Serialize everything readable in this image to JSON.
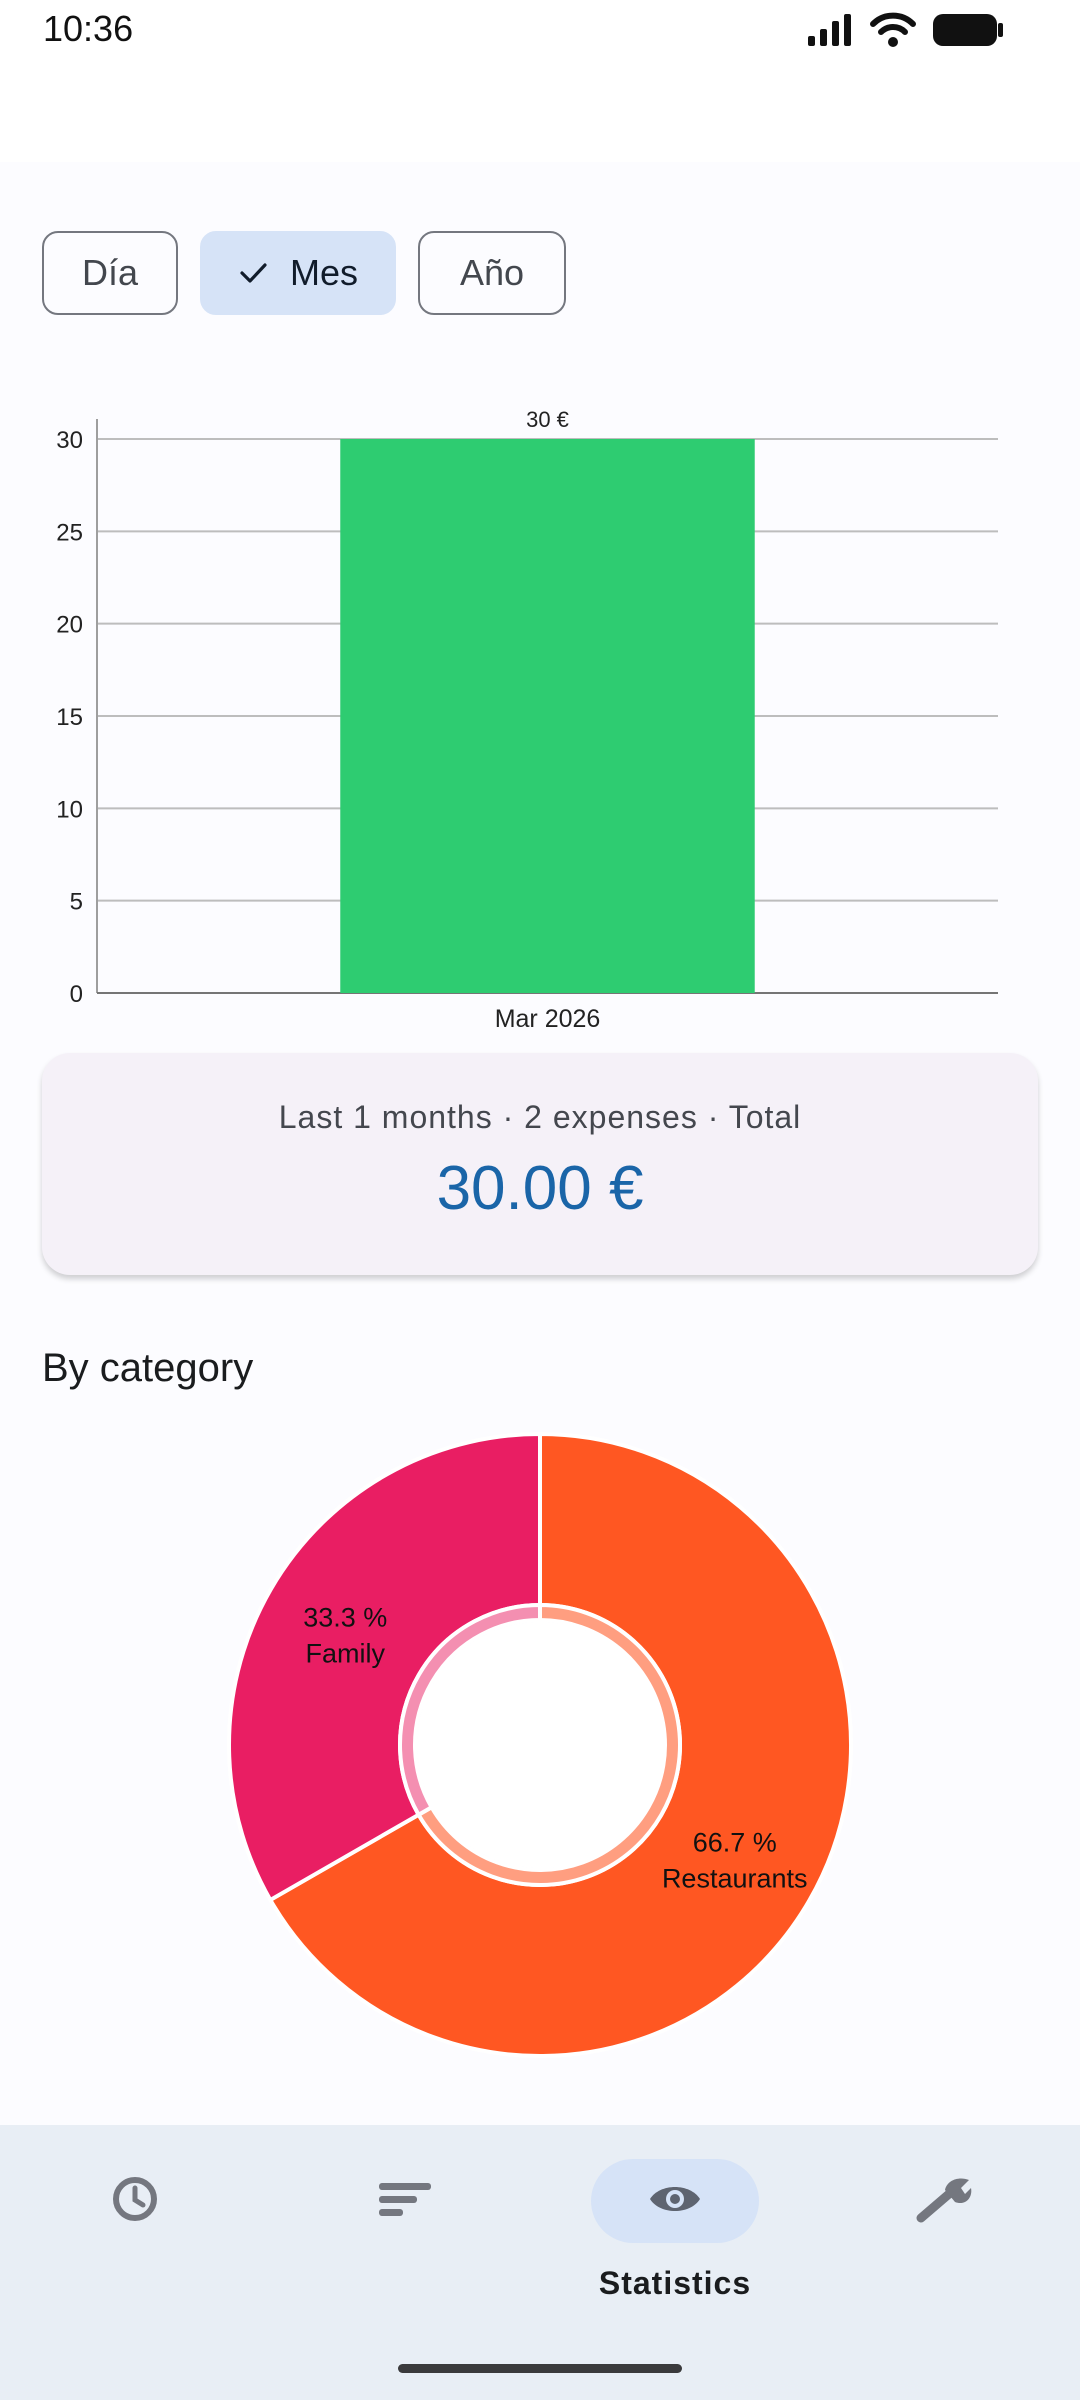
{
  "status": {
    "time": "10:36"
  },
  "period_filter": {
    "options": [
      {
        "label": "Día",
        "selected": false
      },
      {
        "label": "Mes",
        "selected": true
      },
      {
        "label": "Año",
        "selected": false
      }
    ]
  },
  "chart_data": [
    {
      "type": "bar",
      "categories": [
        "Mar 2026"
      ],
      "values": [
        30
      ],
      "data_labels": [
        "30 €"
      ],
      "ylim": [
        0,
        30
      ],
      "yticks": [
        0,
        5,
        10,
        15,
        20,
        25,
        30
      ],
      "grid": true,
      "colors": [
        "#2ECC71"
      ]
    },
    {
      "type": "pie",
      "labels": [
        "Restaurants",
        "Family"
      ],
      "values": [
        66.7,
        33.3
      ],
      "slice_labels": [
        "66.7 %",
        "33.3 %"
      ],
      "colors": [
        "#FF5722",
        "#E91E63"
      ],
      "inner_colors": [
        "#FF9E80",
        "#F48FB1"
      ],
      "donut": true
    }
  ],
  "summary": {
    "subtitle": "Last 1 months · 2 expenses · Total",
    "total": "30.00 €"
  },
  "category_section": {
    "title": "By category"
  },
  "bottom_nav": {
    "items": [
      {
        "icon": "clock-icon",
        "label": "",
        "active": false
      },
      {
        "icon": "sort-list-icon",
        "label": "",
        "active": false
      },
      {
        "icon": "eye-icon",
        "label": "Statistics",
        "active": true
      },
      {
        "icon": "wrench-icon",
        "label": "",
        "active": false
      }
    ]
  }
}
